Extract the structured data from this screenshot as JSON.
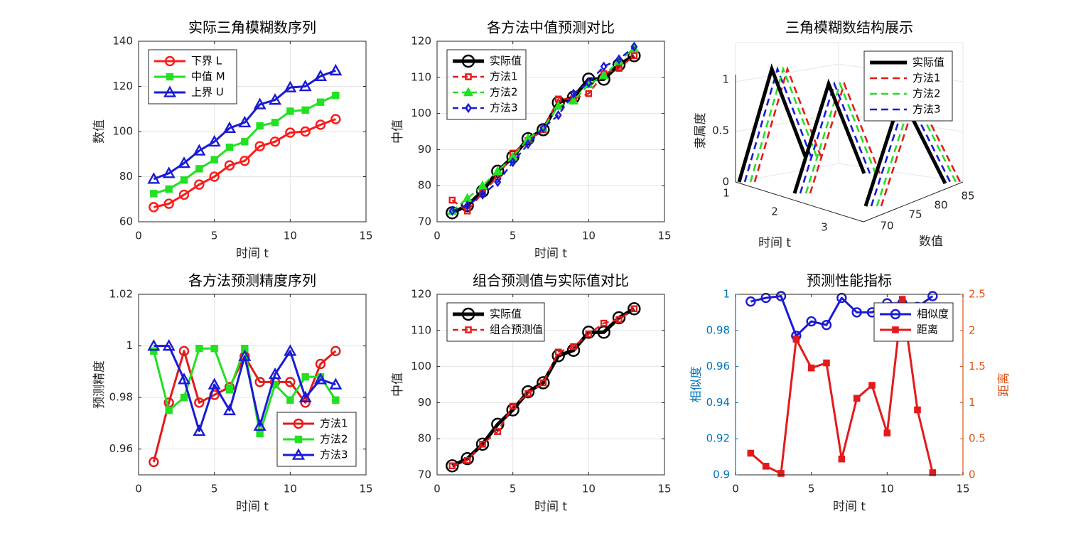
{
  "chart_data": [
    {
      "type": "line",
      "title": "实际三角模糊数序列",
      "xlabel": "时间 t",
      "ylabel": "数值",
      "xlim": [
        0,
        15
      ],
      "ylim": [
        60,
        140
      ],
      "xticks": [
        0,
        5,
        10,
        15
      ],
      "yticks": [
        60,
        80,
        100,
        120,
        140
      ],
      "grid": true,
      "legend_position": "top-left",
      "x": [
        1,
        2,
        3,
        4,
        5,
        6,
        7,
        8,
        9,
        10,
        11,
        12,
        13
      ],
      "series": [
        {
          "name": "下界 L",
          "color": "#ff1a1a",
          "marker": "circle",
          "values": [
            66.5,
            68,
            72,
            76.5,
            80,
            85,
            87,
            93.5,
            95.5,
            99.5,
            100,
            103,
            105.5
          ]
        },
        {
          "name": "中值 M",
          "color": "#22e022",
          "marker": "square",
          "values": [
            72.5,
            74.5,
            78.5,
            83.5,
            87.5,
            93,
            95.5,
            102.5,
            104,
            109,
            109.5,
            113,
            116
          ]
        },
        {
          "name": "上界 U",
          "color": "#1a1ad6",
          "marker": "triangle",
          "values": [
            79,
            81.5,
            86,
            91.5,
            95.5,
            101.5,
            104,
            112,
            114,
            119.5,
            120,
            124.5,
            127
          ]
        }
      ]
    },
    {
      "type": "line",
      "title": "各方法中值预测对比",
      "xlabel": "时间 t",
      "ylabel": "中值",
      "xlim": [
        0,
        15
      ],
      "ylim": [
        70,
        120
      ],
      "xticks": [
        0,
        5,
        10,
        15
      ],
      "yticks": [
        70,
        80,
        90,
        100,
        110,
        120
      ],
      "grid": true,
      "legend_position": "top-left",
      "x": [
        1,
        2,
        3,
        4,
        5,
        6,
        7,
        8,
        9,
        10,
        11,
        12,
        13
      ],
      "series": [
        {
          "name": "实际值",
          "color": "#000000",
          "marker": "circle",
          "values": [
            72.5,
            74.5,
            78.5,
            84,
            88,
            93,
            95.5,
            103,
            104.5,
            109.5,
            109.5,
            113.5,
            116
          ]
        },
        {
          "name": "方法1",
          "color": "#e41a1a",
          "marker": "square",
          "values": [
            76,
            73,
            78,
            82.5,
            89,
            92.5,
            95.5,
            104,
            104,
            105.5,
            111,
            112.5,
            116
          ]
        },
        {
          "name": "方法2",
          "color": "#22e022",
          "marker": "triangle",
          "values": [
            73,
            76.5,
            80,
            84,
            88,
            93,
            96,
            102,
            103.5,
            108,
            110.5,
            114.5,
            118
          ]
        },
        {
          "name": "方法3",
          "color": "#1a1ad6",
          "marker": "diamond",
          "values": [
            73,
            74.5,
            77.5,
            81,
            86.5,
            91.5,
            96,
            99.5,
            105.5,
            108.5,
            113,
            115,
            118.5
          ]
        }
      ]
    },
    {
      "type": "line3d",
      "title": "三角模糊数结构展示",
      "xlabel": "时间 t",
      "ylabel": "数值",
      "zlabel": "隶属度",
      "time_ticks": [
        "1",
        "2",
        "3"
      ],
      "value_ticks": [
        "70",
        "75",
        "80",
        "85"
      ],
      "z_ticks": [
        "0",
        "0.5",
        "1"
      ],
      "legend_position": "top-right",
      "series": [
        {
          "name": "实际值",
          "color": "#000000"
        },
        {
          "name": "方法1",
          "color": "#e41a1a"
        },
        {
          "name": "方法2",
          "color": "#22e022"
        },
        {
          "name": "方法3",
          "color": "#1a1ad6"
        }
      ]
    },
    {
      "type": "line",
      "title": "各方法预测精度序列",
      "xlabel": "时间 t",
      "ylabel": "预测精度",
      "xlim": [
        0,
        15
      ],
      "ylim": [
        0.95,
        1.02
      ],
      "xticks": [
        0,
        5,
        10,
        15
      ],
      "yticks": [
        0.96,
        0.98,
        1,
        1.02
      ],
      "grid": true,
      "legend_position": "bottom-right",
      "x": [
        1,
        2,
        3,
        4,
        5,
        6,
        7,
        8,
        9,
        10,
        11,
        12,
        13
      ],
      "series": [
        {
          "name": "方法1",
          "color": "#e41a1a",
          "marker": "circle",
          "values": [
            0.955,
            0.978,
            0.998,
            0.978,
            0.981,
            0.984,
            0.996,
            0.986,
            0.986,
            0.986,
            0.978,
            0.993,
            0.998
          ]
        },
        {
          "name": "方法2",
          "color": "#22e022",
          "marker": "square",
          "values": [
            0.998,
            0.975,
            0.98,
            0.999,
            0.999,
            0.983,
            0.999,
            0.966,
            0.985,
            0.979,
            0.988,
            0.988,
            0.979
          ]
        },
        {
          "name": "方法3",
          "color": "#1a1ad6",
          "marker": "triangle",
          "values": [
            1.0,
            1.0,
            0.987,
            0.967,
            0.985,
            0.975,
            0.996,
            0.969,
            0.989,
            0.998,
            0.98,
            0.987,
            0.985
          ]
        }
      ]
    },
    {
      "type": "line",
      "title": "组合预测值与实际值对比",
      "xlabel": "时间 t",
      "ylabel": "中值",
      "xlim": [
        0,
        15
      ],
      "ylim": [
        70,
        120
      ],
      "xticks": [
        0,
        5,
        10,
        15
      ],
      "yticks": [
        70,
        80,
        90,
        100,
        110,
        120
      ],
      "grid": true,
      "legend_position": "top-left",
      "x": [
        1,
        2,
        3,
        4,
        5,
        6,
        7,
        8,
        9,
        10,
        11,
        12,
        13
      ],
      "series": [
        {
          "name": "实际值",
          "color": "#000000",
          "marker": "circle",
          "values": [
            72.5,
            74.5,
            78.5,
            84,
            88,
            93,
            95.5,
            103,
            104.5,
            109.5,
            109.5,
            113.5,
            116
          ]
        },
        {
          "name": "组合预测值",
          "color": "#e41a1a",
          "marker": "square",
          "values": [
            72.5,
            74,
            78.5,
            82,
            89,
            92.5,
            95.5,
            104,
            105.5,
            109,
            112,
            113,
            116
          ]
        }
      ]
    },
    {
      "type": "line",
      "title": "预测性能指标",
      "xlabel": "时间 t",
      "ylabel": "相似度",
      "y2label": "距离",
      "xlim": [
        0,
        15
      ],
      "ylim": [
        0.9,
        1
      ],
      "y2lim": [
        0,
        2.5
      ],
      "xticks": [
        0,
        5,
        10,
        15
      ],
      "yticks": [
        0.9,
        0.92,
        0.94,
        0.96,
        0.98,
        1
      ],
      "y2ticks": [
        0,
        0.5,
        1,
        1.5,
        2,
        2.5
      ],
      "grid": false,
      "legend_position": "top-right",
      "x": [
        1,
        2,
        3,
        4,
        5,
        6,
        7,
        8,
        9,
        10,
        11,
        12,
        13
      ],
      "series": [
        {
          "name": "相似度",
          "axis": "left",
          "color": "#1a1ad6",
          "marker": "circle",
          "values": [
            0.996,
            0.998,
            0.999,
            0.977,
            0.985,
            0.983,
            0.998,
            0.99,
            0.99,
            0.995,
            0.995,
            0.993,
            0.999
          ]
        },
        {
          "name": "距离",
          "axis": "right",
          "color": "#e41a1a",
          "marker": "square",
          "values": [
            0.3,
            0.12,
            0.02,
            1.88,
            1.48,
            1.55,
            0.22,
            1.06,
            1.24,
            0.58,
            2.43,
            0.9,
            0.03
          ]
        }
      ],
      "left_axis_color": "#0072bd",
      "right_axis_color": "#d95319"
    }
  ]
}
